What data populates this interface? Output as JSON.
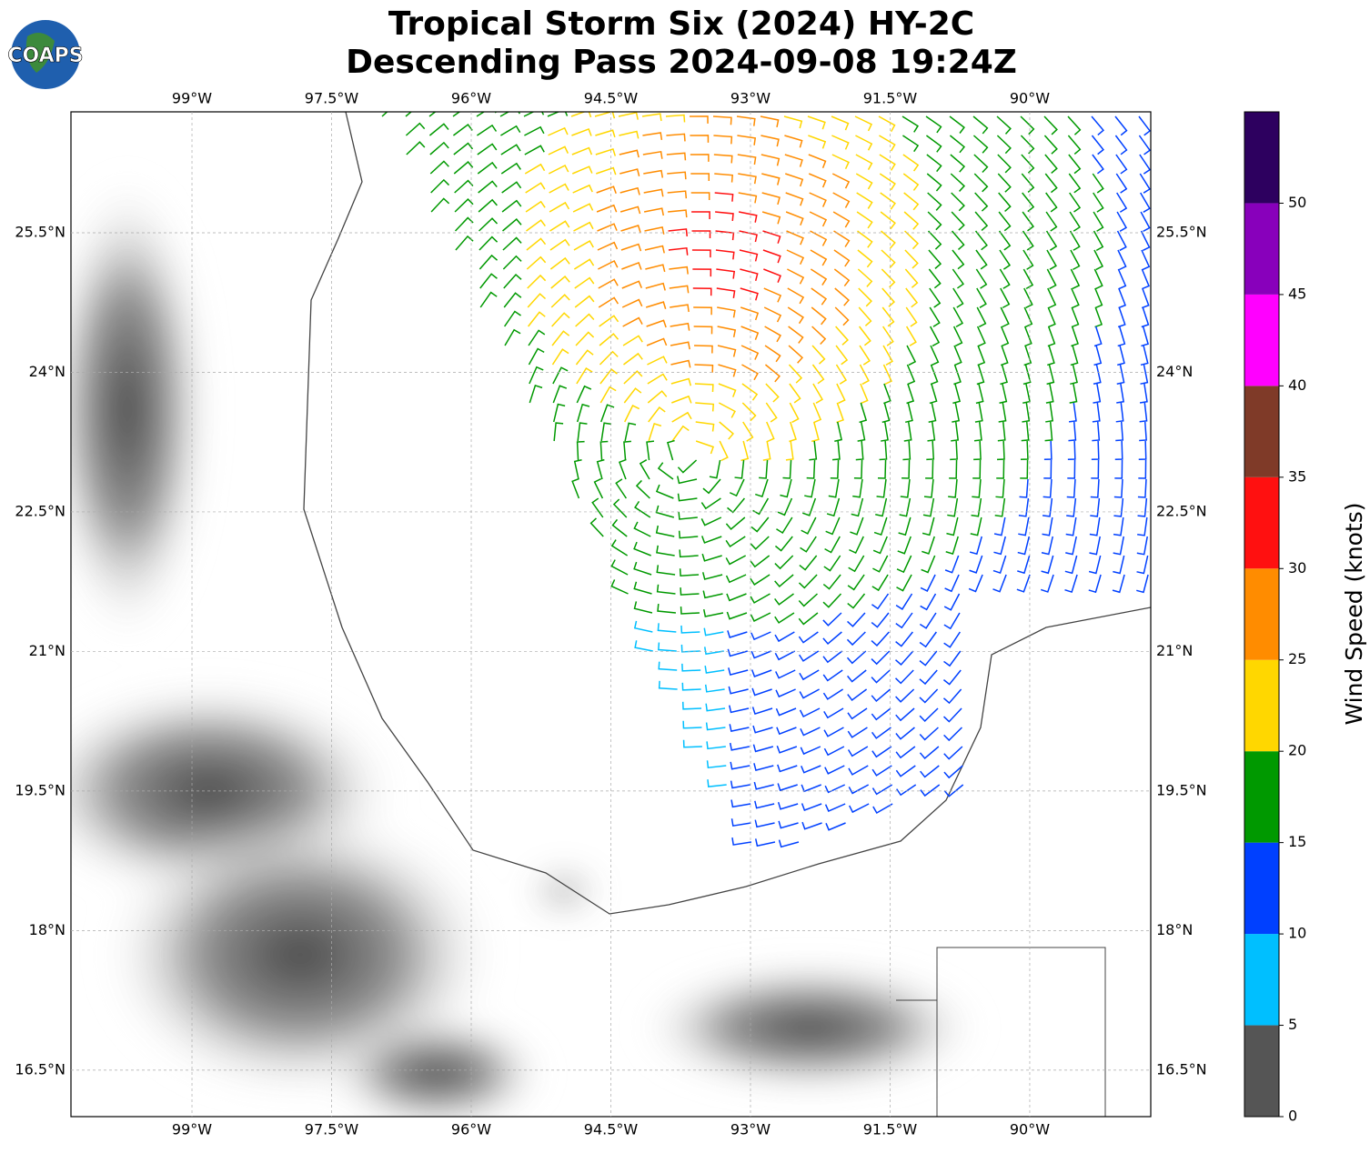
{
  "logo": "COAPS",
  "title": [
    "Tropical Storm Six (2024) HY-2C",
    "Descending Pass 2024-09-08 19:24Z"
  ],
  "map": {
    "xlim": [
      -100.3,
      -88.7
    ],
    "ylim": [
      16.0,
      26.8
    ],
    "xticks": [
      {
        "value": -99,
        "label": "99°W"
      },
      {
        "value": -97.5,
        "label": "97.5°W"
      },
      {
        "value": -96,
        "label": "96°W"
      },
      {
        "value": -94.5,
        "label": "94.5°W"
      },
      {
        "value": -93,
        "label": "93°W"
      },
      {
        "value": -91.5,
        "label": "91.5°W"
      },
      {
        "value": -90,
        "label": "90°W"
      }
    ],
    "yticks": [
      {
        "value": 16.5,
        "label": "16.5°N"
      },
      {
        "value": 18,
        "label": "18°N"
      },
      {
        "value": 19.5,
        "label": "19.5°N"
      },
      {
        "value": 21,
        "label": "21°N"
      },
      {
        "value": 22.5,
        "label": "22.5°N"
      },
      {
        "value": 24,
        "label": "24°N"
      },
      {
        "value": 25.5,
        "label": "25.5°N"
      }
    ],
    "grid": true
  },
  "colorbar": {
    "label": "Wind Speed (knots)",
    "bounds": [
      0,
      5,
      10,
      15,
      20,
      25,
      30,
      35,
      40,
      45,
      50,
      55
    ],
    "colors": [
      "#555555",
      "#00bfff",
      "#0040ff",
      "#009900",
      "#ffd700",
      "#ff8c00",
      "#ff1010",
      "#7f3a28",
      "#ff00ff",
      "#8800bb",
      "#2d005f"
    ],
    "ticks": [
      0,
      5,
      10,
      15,
      20,
      25,
      30,
      35,
      40,
      45,
      50
    ]
  }
}
